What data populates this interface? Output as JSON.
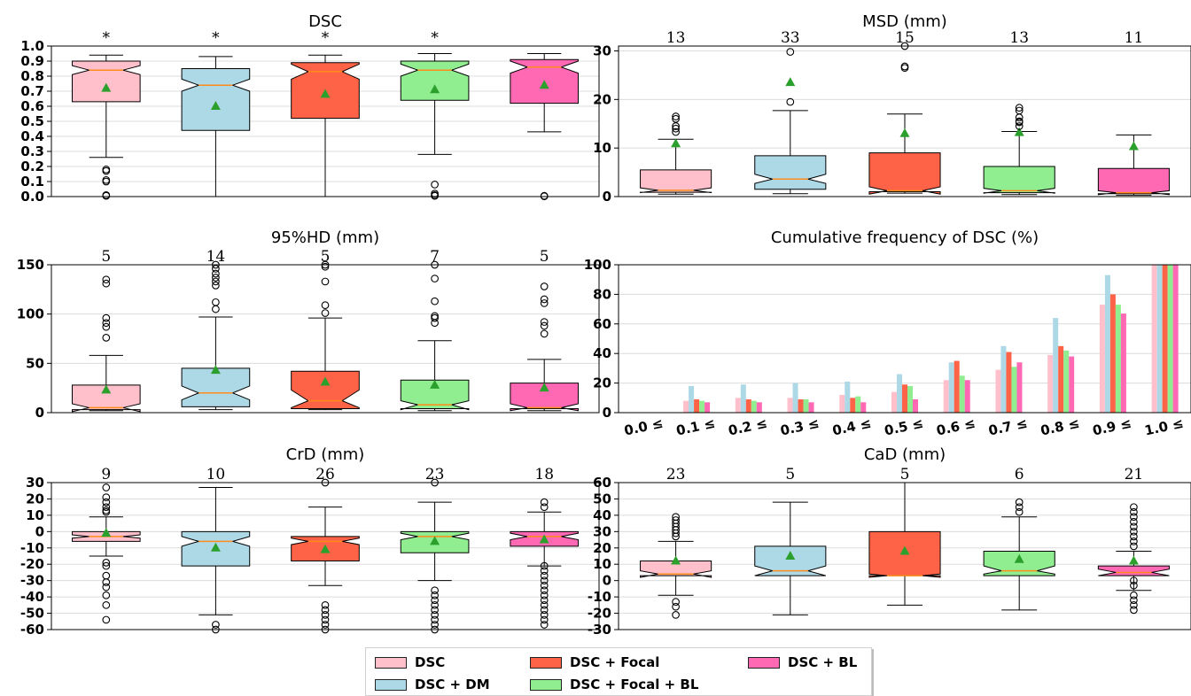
{
  "colors": {
    "DSC": "#ffc0cb",
    "DSC + DM": "#add8e6",
    "DSC + Focal": "#ff6347",
    "DSC + Focal + BL": "#90ee90",
    "DSC + BL": "#ff69b4",
    "median": "#ff8c1a",
    "mean_marker": "#2ca02c"
  },
  "legend": {
    "items": [
      {
        "label": "DSC",
        "color": "#ffc0cb"
      },
      {
        "label": "DSC + DM",
        "color": "#add8e6"
      },
      {
        "label": "DSC + Focal",
        "color": "#ff6347"
      },
      {
        "label": "DSC + Focal + BL",
        "color": "#90ee90"
      },
      {
        "label": "DSC + BL",
        "color": "#ff69b4"
      }
    ]
  },
  "chart_data": [
    {
      "type": "box",
      "title": "DSC",
      "series": [
        "DSC",
        "DSC + DM",
        "DSC + Focal",
        "DSC + Focal + BL",
        "DSC + BL"
      ],
      "ylim": [
        0,
        1.0
      ],
      "yticks": [
        "0.0",
        "0.1",
        "0.2",
        "0.3",
        "0.4",
        "0.5",
        "0.6",
        "0.7",
        "0.8",
        "0.9",
        "1.0"
      ],
      "grid": true,
      "annotations": [
        "*",
        "*",
        "*",
        "*",
        ""
      ],
      "boxes": [
        {
          "q1": 0.63,
          "median": 0.84,
          "q3": 0.9,
          "whislo": 0.26,
          "whishi": 0.94,
          "mean": 0.72,
          "notch": [
            0.81,
            0.87
          ],
          "fliers": [
            0.18,
            0.17,
            0.11,
            0.1,
            0.01,
            0.005
          ]
        },
        {
          "q1": 0.44,
          "median": 0.74,
          "q3": 0.85,
          "whislo": 0.0,
          "whishi": 0.93,
          "mean": 0.6,
          "notch": [
            0.7,
            0.78
          ],
          "fliers": []
        },
        {
          "q1": 0.52,
          "median": 0.83,
          "q3": 0.89,
          "whislo": 0.0,
          "whishi": 0.94,
          "mean": 0.68,
          "notch": [
            0.78,
            0.88
          ],
          "fliers": []
        },
        {
          "q1": 0.64,
          "median": 0.84,
          "q3": 0.9,
          "whislo": 0.28,
          "whishi": 0.95,
          "mean": 0.71,
          "notch": [
            0.8,
            0.88
          ],
          "fliers": [
            0.08,
            0.02,
            0.01,
            0.005
          ]
        },
        {
          "q1": 0.62,
          "median": 0.86,
          "q3": 0.91,
          "whislo": 0.43,
          "whishi": 0.95,
          "mean": 0.74,
          "notch": [
            0.82,
            0.9
          ],
          "fliers": [
            0.005,
            0.002
          ]
        }
      ]
    },
    {
      "type": "box",
      "title": "MSD (mm)",
      "series": [
        "DSC",
        "DSC + DM",
        "DSC + Focal",
        "DSC + Focal + BL",
        "DSC + BL"
      ],
      "ylim": [
        0,
        31
      ],
      "yticks": [
        "0",
        "10",
        "20",
        "30"
      ],
      "grid": true,
      "annotations": [
        "13",
        "33",
        "15",
        "13",
        "11"
      ],
      "boxes": [
        {
          "q1": 0.9,
          "median": 1.3,
          "q3": 5.5,
          "whislo": 0.5,
          "whishi": 11.8,
          "mean": 10.9,
          "notch": [
            0.8,
            1.8
          ],
          "fliers": [
            16.5,
            16.0,
            14.5,
            14.0,
            13.3
          ]
        },
        {
          "q1": 1.5,
          "median": 3.6,
          "q3": 8.4,
          "whislo": 0.6,
          "whishi": 17.7,
          "mean": 23.5,
          "notch": [
            2.7,
            4.6
          ],
          "fliers": [
            19.5,
            29.8
          ]
        },
        {
          "q1": 1.0,
          "median": 1.2,
          "q3": 9.0,
          "whislo": 0.7,
          "whishi": 17.0,
          "mean": 13.0,
          "notch": [
            0.5,
            2.0
          ],
          "fliers": [
            26.5,
            26.8,
            31.0
          ]
        },
        {
          "q1": 0.8,
          "median": 1.2,
          "q3": 6.2,
          "whislo": 0.4,
          "whishi": 13.4,
          "mean": 13.2,
          "notch": [
            0.7,
            1.7
          ],
          "fliers": [
            18.3,
            17.7,
            16.3,
            15.5,
            15.3,
            14.5
          ]
        },
        {
          "q1": 0.6,
          "median": 0.8,
          "q3": 5.8,
          "whislo": 0.3,
          "whishi": 12.7,
          "mean": 10.3,
          "notch": [
            0.4,
            1.2
          ],
          "fliers": []
        }
      ]
    },
    {
      "type": "box",
      "title": "95%HD (mm)",
      "series": [
        "DSC",
        "DSC + DM",
        "DSC + Focal",
        "DSC + Focal + BL",
        "DSC + BL"
      ],
      "ylim": [
        0,
        150
      ],
      "yticks": [
        "0",
        "50",
        "100",
        "150"
      ],
      "grid": true,
      "annotations": [
        "5",
        "14",
        "5",
        "7",
        "5"
      ],
      "boxes": [
        {
          "q1": 3,
          "median": 5,
          "q3": 28,
          "whislo": 2,
          "whishi": 58,
          "mean": 23,
          "notch": [
            1,
            9
          ],
          "fliers": [
            135,
            131,
            96,
            91,
            87,
            76
          ]
        },
        {
          "q1": 6,
          "median": 20,
          "q3": 45,
          "whislo": 3,
          "whishi": 97,
          "mean": 43,
          "notch": [
            13,
            27
          ],
          "fliers": [
            150,
            146,
            141,
            137,
            133,
            129,
            112,
            105
          ]
        },
        {
          "q1": 4,
          "median": 12,
          "q3": 42,
          "whislo": 3,
          "whishi": 96,
          "mean": 31,
          "notch": [
            5,
            23
          ],
          "fliers": [
            150,
            148,
            133,
            109,
            101
          ]
        },
        {
          "q1": 4,
          "median": 8,
          "q3": 33,
          "whislo": 2,
          "whishi": 73,
          "mean": 28,
          "notch": [
            3,
            12
          ],
          "fliers": [
            150,
            136,
            113,
            98,
            96,
            91
          ]
        },
        {
          "q1": 4,
          "median": 5,
          "q3": 30,
          "whislo": 2,
          "whishi": 54,
          "mean": 25,
          "notch": [
            2,
            9
          ],
          "fliers": [
            128,
            115,
            111,
            92,
            88,
            80
          ]
        }
      ]
    },
    {
      "type": "bar",
      "title": "Cumulative frequency of DSC (%)",
      "categories": [
        "0.0 ≤",
        "0.1 ≤",
        "0.2 ≤",
        "0.3 ≤",
        "0.4 ≤",
        "0.5 ≤",
        "0.6 ≤",
        "0.7 ≤",
        "0.8 ≤",
        "0.9 ≤",
        "1.0 ≤"
      ],
      "ylim": [
        0,
        100
      ],
      "yticks": [
        "0",
        "20",
        "40",
        "60",
        "80",
        "100"
      ],
      "grid": true,
      "series": [
        {
          "name": "DSC",
          "values": [
            0,
            8,
            10,
            10,
            12,
            14,
            22,
            29,
            39,
            73,
            100
          ]
        },
        {
          "name": "DSC + DM",
          "values": [
            0,
            18,
            19,
            20,
            21,
            26,
            34,
            45,
            64,
            93,
            100
          ]
        },
        {
          "name": "DSC + Focal",
          "values": [
            0,
            9,
            9,
            9,
            10,
            19,
            35,
            41,
            45,
            80,
            100
          ]
        },
        {
          "name": "DSC + Focal + BL",
          "values": [
            0,
            8,
            8,
            9,
            11,
            18,
            25,
            31,
            42,
            73,
            100
          ]
        },
        {
          "name": "DSC + BL",
          "values": [
            0,
            7,
            7,
            7,
            7,
            9,
            22,
            34,
            38,
            67,
            100
          ]
        }
      ]
    },
    {
      "type": "box",
      "title": "CrD (mm)",
      "series": [
        "DSC",
        "DSC + DM",
        "DSC + Focal",
        "DSC + Focal + BL",
        "DSC + BL"
      ],
      "ylim": [
        -60,
        30
      ],
      "yticks": [
        "-60",
        "-50",
        "-40",
        "-30",
        "-20",
        "-10",
        "0",
        "10",
        "20",
        "30"
      ],
      "grid": true,
      "annotations": [
        "9",
        "10",
        "26",
        "23",
        "18"
      ],
      "boxes": [
        {
          "q1": -6,
          "median": -3,
          "q3": 0,
          "whislo": -15,
          "whishi": 9,
          "mean": -1,
          "notch": [
            -4,
            -2
          ],
          "fliers": [
            27,
            21,
            18,
            15,
            13,
            12,
            -19,
            -21,
            -27,
            -31,
            -34,
            -39,
            -45,
            -54
          ]
        },
        {
          "q1": -21,
          "median": -6,
          "q3": 0,
          "whislo": -51,
          "whishi": 27,
          "mean": -10,
          "notch": [
            -9,
            -3
          ],
          "fliers": [
            -57,
            -60
          ]
        },
        {
          "q1": -18,
          "median": -6,
          "q3": -3,
          "whislo": -33,
          "whishi": 15,
          "mean": -11,
          "notch": [
            -8,
            -4
          ],
          "fliers": [
            30,
            -45,
            -48,
            -51,
            -54,
            -57,
            -60
          ]
        },
        {
          "q1": -13,
          "median": -3,
          "q3": 0,
          "whislo": -30,
          "whishi": 18,
          "mean": -6,
          "notch": [
            -5,
            -1
          ],
          "fliers": [
            30,
            -36,
            -39,
            -42,
            -45,
            -48,
            -51,
            -54,
            -57,
            -60
          ]
        },
        {
          "q1": -9,
          "median": -3,
          "q3": 0,
          "whislo": -21,
          "whishi": 12,
          "mean": -5,
          "notch": [
            -5,
            -1
          ],
          "fliers": [
            18,
            15,
            -21,
            -24,
            -27,
            -30,
            -33,
            -36,
            -39,
            -42,
            -45,
            -48,
            -51,
            -54,
            -57
          ]
        }
      ]
    },
    {
      "type": "box",
      "title": "CaD (mm)",
      "series": [
        "DSC",
        "DSC + DM",
        "DSC + Focal",
        "DSC + Focal + BL",
        "DSC + BL"
      ],
      "ylim": [
        -30,
        60
      ],
      "yticks": [
        "-30",
        "-20",
        "-10",
        "0",
        "10",
        "20",
        "30",
        "40",
        "50",
        "60"
      ],
      "grid": true,
      "annotations": [
        "23",
        "5",
        "5",
        "6",
        "21"
      ],
      "boxes": [
        {
          "q1": 3,
          "median": 4,
          "q3": 12,
          "whislo": -9,
          "whishi": 24,
          "mean": 12,
          "notch": [
            2,
            6
          ],
          "fliers": [
            39,
            37,
            35,
            33,
            31,
            29,
            27,
            -13,
            -16,
            -21
          ]
        },
        {
          "q1": 3,
          "median": 6,
          "q3": 21,
          "whislo": -21,
          "whishi": 48,
          "mean": 15,
          "notch": [
            3,
            9
          ],
          "fliers": []
        },
        {
          "q1": 3,
          "median": 3,
          "q3": 30,
          "whislo": -15,
          "whishi": 63,
          "mean": 18,
          "notch": [
            2,
            4
          ],
          "fliers": []
        },
        {
          "q1": 3,
          "median": 6,
          "q3": 18,
          "whislo": -18,
          "whishi": 39,
          "mean": 13,
          "notch": [
            4,
            9
          ],
          "fliers": [
            48,
            45,
            42
          ]
        },
        {
          "q1": 3,
          "median": 5,
          "q3": 9,
          "whislo": -6,
          "whishi": 18,
          "mean": 12,
          "notch": [
            3,
            7
          ],
          "fliers": [
            45,
            42,
            39,
            36,
            33,
            30,
            27,
            24,
            21,
            0,
            -3,
            -9,
            -12,
            -15,
            -18
          ]
        }
      ]
    }
  ]
}
